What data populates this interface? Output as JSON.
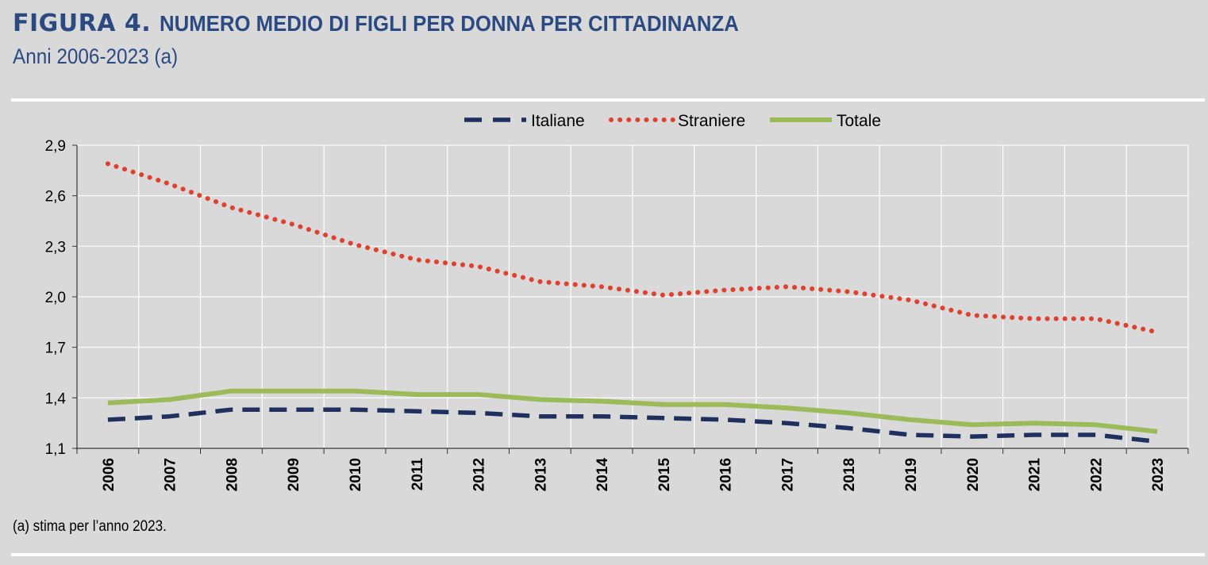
{
  "header": {
    "figure_label": "FIGURA 4.",
    "title": "NUMERO MEDIO DI FIGLI PER DONNA PER CITTADINANZA",
    "subtitle": "Anni 2006-2023 (a)"
  },
  "footnote": "(a) stima per l’anno 2023.",
  "chart_data": {
    "type": "line",
    "title": "NUMERO MEDIO DI FIGLI PER DONNA PER CITTADINANZA",
    "subtitle": "Anni 2006-2023 (a)",
    "xlabel": "",
    "ylabel": "",
    "x": [
      "2006",
      "2007",
      "2008",
      "2009",
      "2010",
      "2011",
      "2012",
      "2013",
      "2014",
      "2015",
      "2016",
      "2017",
      "2018",
      "2019",
      "2020",
      "2021",
      "2022",
      "2023"
    ],
    "ylim": [
      1.1,
      2.9
    ],
    "yticks": [
      "2,9",
      "2,6",
      "2,3",
      "2,0",
      "1,7",
      "1,4",
      "1,1"
    ],
    "ytick_values": [
      2.9,
      2.6,
      2.3,
      2.0,
      1.7,
      1.4,
      1.1
    ],
    "grid": true,
    "legend_position": "top",
    "series": [
      {
        "name": "Italiane",
        "style": "dashed",
        "color": "#1f2f5e",
        "values": [
          1.27,
          1.29,
          1.33,
          1.33,
          1.33,
          1.32,
          1.31,
          1.29,
          1.29,
          1.28,
          1.27,
          1.25,
          1.22,
          1.18,
          1.17,
          1.18,
          1.18,
          1.14
        ]
      },
      {
        "name": "Straniere",
        "style": "dotted",
        "color": "#e0412f",
        "values": [
          2.79,
          2.67,
          2.53,
          2.43,
          2.31,
          2.22,
          2.18,
          2.09,
          2.06,
          2.01,
          2.04,
          2.06,
          2.03,
          1.98,
          1.89,
          1.87,
          1.87,
          1.79
        ]
      },
      {
        "name": "Totale",
        "style": "solid",
        "color": "#9bbb59",
        "values": [
          1.37,
          1.39,
          1.44,
          1.44,
          1.44,
          1.42,
          1.42,
          1.39,
          1.38,
          1.36,
          1.36,
          1.34,
          1.31,
          1.27,
          1.24,
          1.25,
          1.24,
          1.2
        ]
      }
    ]
  }
}
